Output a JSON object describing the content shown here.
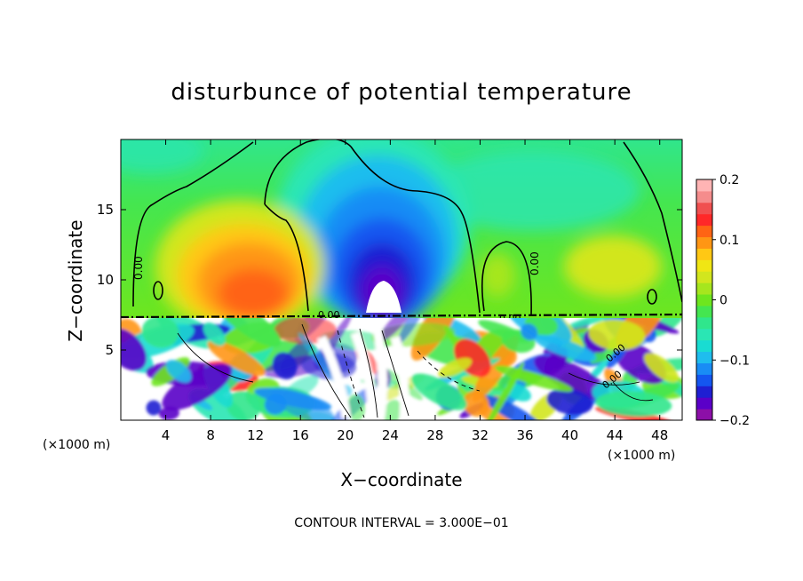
{
  "chart_data": {
    "type": "heatmap",
    "title": "disturbunce of potential temperature",
    "xlabel": "X−coordinate",
    "ylabel": "Z−coordinate",
    "x_unit": "(×1000 m)",
    "z_unit": "(×1000 m)",
    "xlim": [
      0,
      50
    ],
    "ylim": [
      0,
      20
    ],
    "x_ticks": [
      "4",
      "8",
      "12",
      "16",
      "20",
      "24",
      "28",
      "32",
      "36",
      "40",
      "44",
      "48"
    ],
    "y_ticks": [
      "5",
      "10",
      "15"
    ],
    "colorbar": {
      "range": [
        -0.2,
        0.2
      ],
      "tick_labels": [
        "0.2",
        "0.1",
        "0",
        "−0.1",
        "−0.2"
      ],
      "tick_values": [
        0.2,
        0.1,
        0,
        -0.1,
        -0.2
      ],
      "colors": [
        "#8c0fa8",
        "#5a00c8",
        "#1f1fd2",
        "#1456f0",
        "#198cf5",
        "#1fbdee",
        "#19dcd2",
        "#2ae6b4",
        "#30e68c",
        "#44e650",
        "#6ee61e",
        "#a6e61e",
        "#d2e61e",
        "#f0e614",
        "#ffc814",
        "#ff9614",
        "#ff6414",
        "#ff2828",
        "#f05050",
        "#f58c8c",
        "#ffb4b4"
      ]
    },
    "contour_labels": [
      "0.00",
      "0.00",
      "0.00",
      "0.00",
      "0.00",
      "0.00"
    ],
    "footer": "CONTOUR INTERVAL =  3.000E−01",
    "grid": false
  },
  "colors": {
    "background": "#ffffff",
    "upper_field": "#44e650",
    "warm_anomaly": "#ff2828",
    "cold_anomaly": "#1f1fd2",
    "contour": "#000000"
  }
}
